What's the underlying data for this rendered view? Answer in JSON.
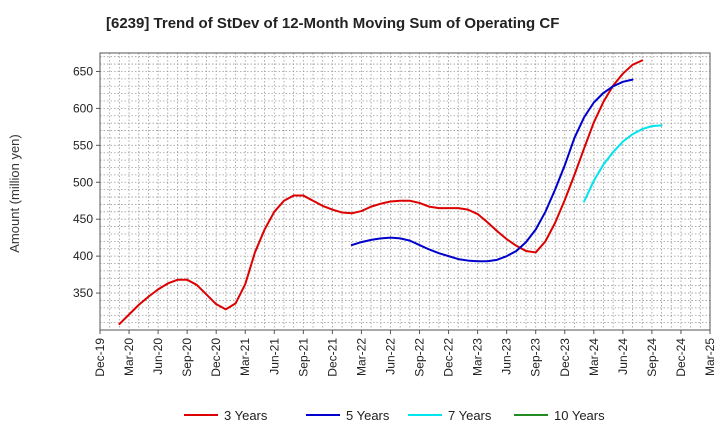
{
  "chart_data": {
    "type": "line",
    "title": "[6239]  Trend of StDev of 12-Month Moving Sum of Operating CF",
    "xlabel": "",
    "ylabel": "Amount (million yen)",
    "x_tick_labels": [
      "Dec-19",
      "Mar-20",
      "Jun-20",
      "Sep-20",
      "Dec-20",
      "Mar-21",
      "Jun-21",
      "Sep-21",
      "Dec-21",
      "Mar-22",
      "Jun-22",
      "Sep-22",
      "Dec-22",
      "Mar-23",
      "Jun-23",
      "Sep-23",
      "Dec-23",
      "Mar-24",
      "Jun-24",
      "Sep-24",
      "Dec-24",
      "Mar-25"
    ],
    "y_ticks": [
      350,
      400,
      450,
      500,
      550,
      600,
      650
    ],
    "ylim": [
      300,
      675
    ],
    "grid": true,
    "legend_position": "bottom",
    "series": [
      {
        "name": "3 Years",
        "color": "#dd0000",
        "start_index": 2,
        "values": [
          308,
          321,
          334,
          345,
          355,
          363,
          368,
          368,
          361,
          348,
          335,
          328,
          336,
          362,
          405,
          436,
          460,
          475,
          482,
          482,
          475,
          468,
          463,
          459,
          458,
          461,
          467,
          471,
          474,
          475,
          475,
          472,
          467,
          465,
          465,
          465,
          463,
          457,
          446,
          434,
          423,
          414,
          407,
          405,
          420,
          445,
          476,
          510,
          546,
          581,
          609,
          631,
          647,
          659,
          665
        ]
      },
      {
        "name": "5 Years",
        "color": "#0000cc",
        "start_index": 26,
        "values": [
          415,
          419,
          422,
          424,
          425,
          424,
          421,
          415,
          409,
          404,
          400,
          396,
          394,
          393,
          393,
          395,
          400,
          407,
          419,
          436,
          460,
          490,
          523,
          560,
          588,
          608,
          621,
          630,
          636,
          639
        ]
      },
      {
        "name": "7 Years",
        "color": "#00e5ee",
        "start_index": 50,
        "values": [
          474,
          502,
          524,
          541,
          555,
          565,
          572,
          576,
          577
        ]
      },
      {
        "name": "10 Years",
        "color": "#228b22",
        "start_index": 59,
        "values": []
      }
    ]
  }
}
